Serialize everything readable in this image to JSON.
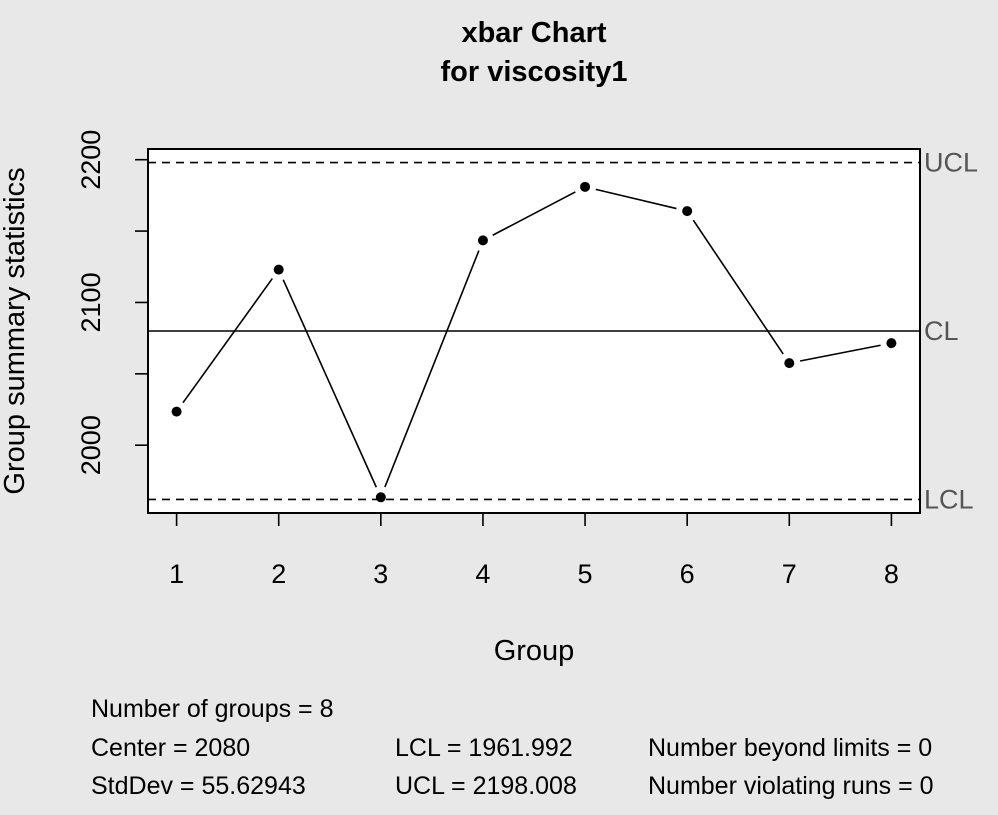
{
  "chart_data": {
    "type": "line",
    "title": "xbar Chart",
    "subtitle": "for viscosity1",
    "xlabel": "Group",
    "ylabel": "Group summary statistics",
    "x": [
      1,
      2,
      3,
      4,
      5,
      6,
      7,
      8
    ],
    "series": [
      {
        "values": [
          2023.5,
          2123,
          1963.5,
          2143.5,
          2181,
          2164,
          2057.5,
          2071.5
        ]
      }
    ],
    "xticks": [
      "1",
      "2",
      "3",
      "4",
      "5",
      "6",
      "7",
      "8"
    ],
    "yticks": [
      "2000",
      "2100",
      "2200"
    ],
    "xlim": [
      0.72,
      8.28
    ],
    "ylim": [
      1952.5,
      2207.5
    ],
    "grid": false,
    "limits": [
      {
        "label": "UCL",
        "value": 2198.008,
        "style": "dashed"
      },
      {
        "label": "CL",
        "value": 2080,
        "style": "solid"
      },
      {
        "label": "LCL",
        "value": 1961.992,
        "style": "dashed"
      }
    ],
    "colors": {
      "background": "#e8e8e8",
      "plot": "#ffffff",
      "line": "#000000",
      "limit_label": "#555555"
    }
  },
  "stats": {
    "groups": "Number of groups = 8",
    "center": "Center = 2080",
    "stddev": "StdDev = 55.62943",
    "lcl": "LCL = 1961.992",
    "ucl": "UCL = 2198.008",
    "beyond": "Number beyond limits = 0",
    "runs": "Number violating runs = 0"
  }
}
